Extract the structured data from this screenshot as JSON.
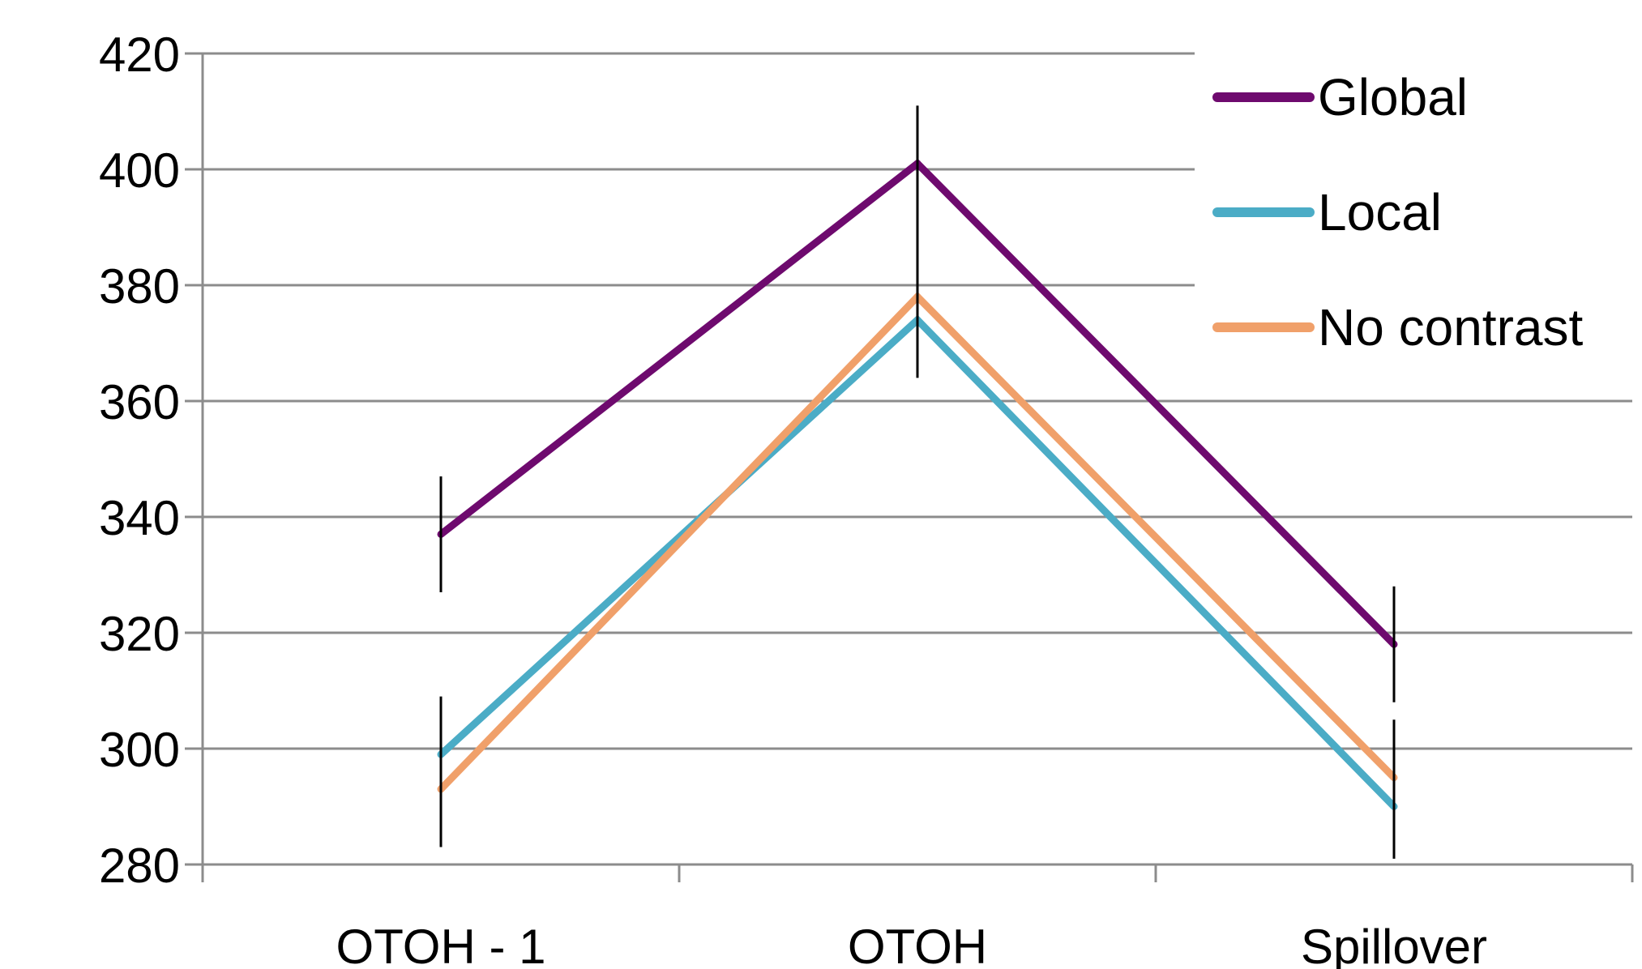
{
  "chart_data": {
    "type": "line",
    "title": "",
    "xlabel": "",
    "ylabel": "",
    "categories": [
      "OTOH - 1",
      "OTOH",
      "Spillover"
    ],
    "ylim": [
      280,
      420
    ],
    "yticks": [
      280,
      300,
      320,
      340,
      360,
      380,
      400,
      420
    ],
    "grid": "horizontal",
    "legend": {
      "position": "top-right"
    },
    "series": [
      {
        "name": "Global",
        "color": "#6e0a6e",
        "values": [
          337,
          401,
          318
        ],
        "error": [
          [
            327,
            347
          ],
          [
            380,
            411
          ],
          [
            308,
            328
          ]
        ]
      },
      {
        "name": "Local",
        "color": "#4bacc6",
        "values": [
          299,
          374,
          290
        ],
        "error": [
          [
            287,
            309
          ],
          [
            364,
            384
          ],
          [
            281,
            300
          ]
        ]
      },
      {
        "name": "No contrast",
        "color": "#f0a06a",
        "values": [
          293,
          378,
          295
        ],
        "error": [
          [
            283,
            303
          ],
          [
            368,
            388
          ],
          [
            285,
            305
          ]
        ]
      }
    ]
  }
}
